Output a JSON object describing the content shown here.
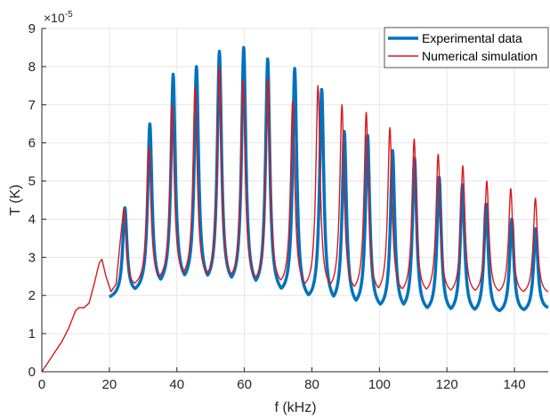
{
  "chart_data": {
    "type": "line",
    "xlabel": "f (kHz)",
    "ylabel": "T (K)",
    "xlim": [
      0,
      150
    ],
    "ylim": [
      0,
      9
    ],
    "y_exponent_base": "×10",
    "y_exponent": "-5",
    "x_ticks": [
      0,
      20,
      40,
      60,
      80,
      100,
      120,
      140
    ],
    "x_tick_labels": [
      "0",
      "20",
      "40",
      "60",
      "80",
      "100",
      "120",
      "140"
    ],
    "y_ticks": [
      0,
      1,
      2,
      3,
      4,
      5,
      6,
      7,
      8,
      9
    ],
    "y_tick_labels": [
      "0",
      "1",
      "2",
      "3",
      "4",
      "5",
      "6",
      "7",
      "8",
      "9"
    ],
    "grid": true,
    "legend_position": "top-right",
    "series": [
      {
        "name": "Experimental data",
        "color": "#0072BD",
        "x_start": 20,
        "baseline": [
          [
            20,
            1.9
          ],
          [
            40,
            2.3
          ],
          [
            60,
            2.2
          ],
          [
            80,
            1.8
          ],
          [
            100,
            1.6
          ],
          [
            120,
            1.5
          ],
          [
            140,
            1.5
          ],
          [
            150,
            1.6
          ]
        ],
        "peaks": [
          {
            "f": 24.6,
            "T": 4.3
          },
          {
            "f": 32.0,
            "T": 6.5
          },
          {
            "f": 38.9,
            "T": 7.8
          },
          {
            "f": 45.8,
            "T": 8.0
          },
          {
            "f": 52.6,
            "T": 8.4
          },
          {
            "f": 59.8,
            "T": 8.5
          },
          {
            "f": 66.9,
            "T": 8.2
          },
          {
            "f": 74.9,
            "T": 7.95
          },
          {
            "f": 82.9,
            "T": 7.4
          },
          {
            "f": 89.6,
            "T": 6.3
          },
          {
            "f": 96.5,
            "T": 6.2
          },
          {
            "f": 103.9,
            "T": 5.8
          },
          {
            "f": 110.4,
            "T": 5.6
          },
          {
            "f": 117.7,
            "T": 5.1
          },
          {
            "f": 124.6,
            "T": 4.9
          },
          {
            "f": 131.6,
            "T": 4.4
          },
          {
            "f": 139.2,
            "T": 4.0
          },
          {
            "f": 146.3,
            "T": 3.75
          }
        ]
      },
      {
        "name": "Numerical simulation",
        "color": "#D9181C",
        "head": [
          [
            0,
            0
          ],
          [
            3,
            0.4
          ],
          [
            6,
            0.8
          ],
          [
            8,
            1.15
          ],
          [
            10,
            1.6
          ],
          [
            11,
            1.68
          ],
          [
            12.5,
            1.68
          ],
          [
            14,
            1.8
          ],
          [
            15.5,
            2.3
          ],
          [
            17,
            2.85
          ],
          [
            17.8,
            2.95
          ],
          [
            19,
            2.5
          ],
          [
            20.5,
            2.1
          ],
          [
            22,
            2.3
          ],
          [
            23.2,
            3.4
          ],
          [
            24.2,
            4.25
          ]
        ],
        "baseline": [
          [
            20,
            2.1
          ],
          [
            40,
            2.4
          ],
          [
            60,
            2.3
          ],
          [
            80,
            2.1
          ],
          [
            100,
            2.0
          ],
          [
            120,
            2.0
          ],
          [
            140,
            2.0
          ],
          [
            150,
            2.0
          ]
        ],
        "peaks": [
          {
            "f": 24.4,
            "T": 4.25
          },
          {
            "f": 31.7,
            "T": 5.9
          },
          {
            "f": 38.6,
            "T": 7.0
          },
          {
            "f": 45.4,
            "T": 7.45
          },
          {
            "f": 52.6,
            "T": 8.0
          },
          {
            "f": 59.6,
            "T": 7.65
          },
          {
            "f": 67.0,
            "T": 7.7
          },
          {
            "f": 74.3,
            "T": 7.1
          },
          {
            "f": 81.8,
            "T": 7.5
          },
          {
            "f": 88.9,
            "T": 7.0
          },
          {
            "f": 96.1,
            "T": 6.8
          },
          {
            "f": 103.1,
            "T": 6.4
          },
          {
            "f": 110.3,
            "T": 6.1
          },
          {
            "f": 117.4,
            "T": 5.7
          },
          {
            "f": 124.7,
            "T": 5.4
          },
          {
            "f": 131.8,
            "T": 5.0
          },
          {
            "f": 138.9,
            "T": 4.8
          },
          {
            "f": 146.2,
            "T": 4.55
          }
        ]
      }
    ]
  }
}
